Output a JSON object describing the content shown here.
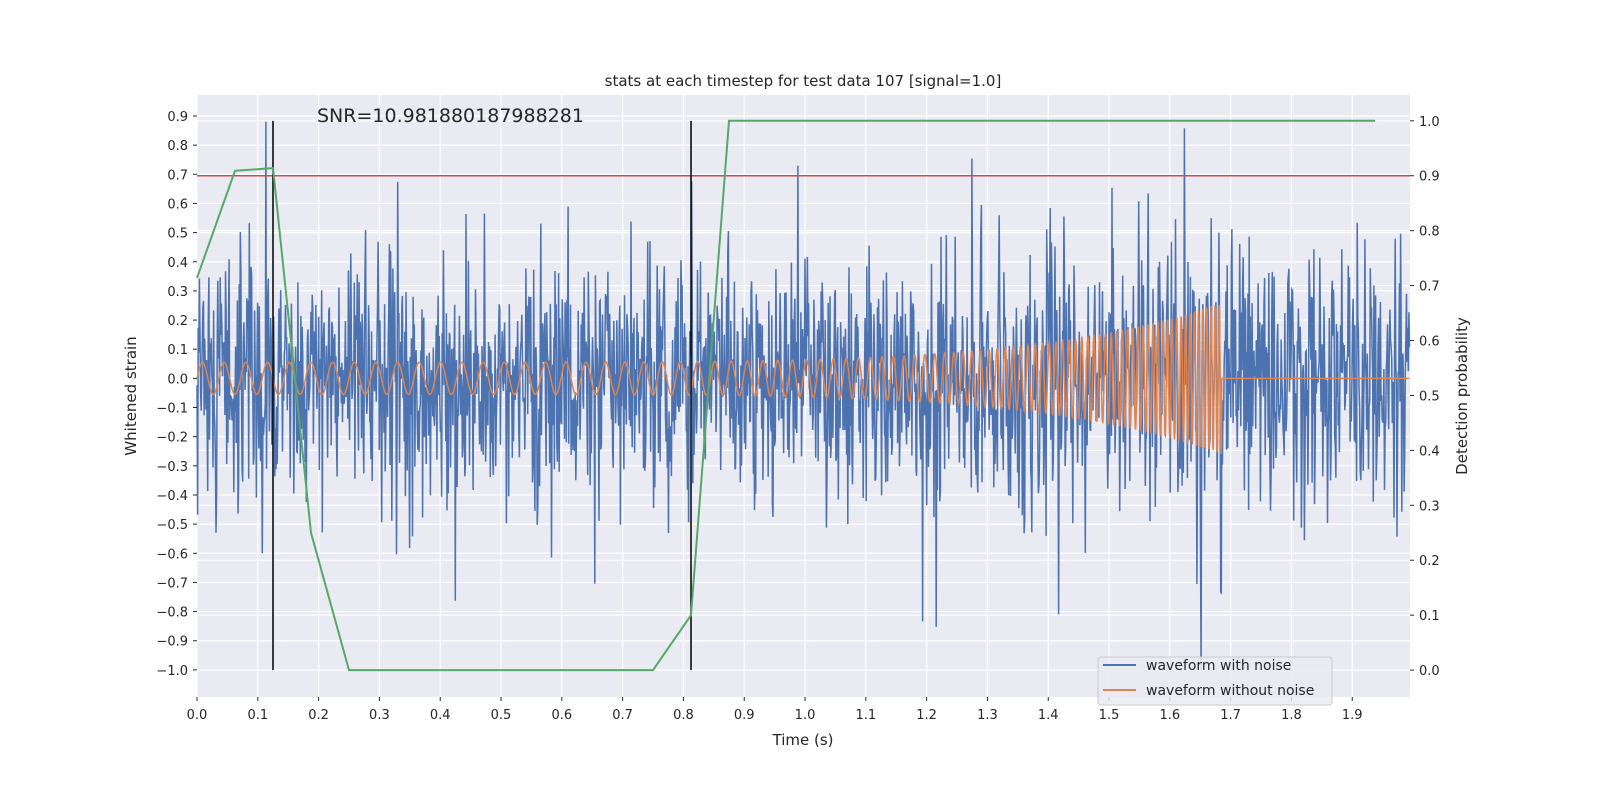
{
  "chart_data": {
    "type": "line",
    "title": "stats at each timestep for test data 107 [signal=1.0]",
    "annotation": "SNR=10.981880187988281",
    "xlabel": "Time (s)",
    "ylabel_left": "Whitened strain",
    "ylabel_right": "Detection probability",
    "xlim": [
      0.0,
      1.995
    ],
    "ylim_left": [
      -1.093,
      0.972
    ],
    "ylim_right": [
      -0.049,
      1.047
    ],
    "x_ticks": [
      "0.0",
      "0.1",
      "0.2",
      "0.3",
      "0.4",
      "0.5",
      "0.6",
      "0.7",
      "0.8",
      "0.9",
      "1.0",
      "1.1",
      "1.2",
      "1.3",
      "1.4",
      "1.5",
      "1.6",
      "1.7",
      "1.8",
      "1.9"
    ],
    "y_ticks_left": [
      "0.9",
      "0.8",
      "0.7",
      "0.6",
      "0.5",
      "0.4",
      "0.3",
      "0.2",
      "0.1",
      "0.0",
      "−0.1",
      "−0.2",
      "−0.3",
      "−0.4",
      "−0.5",
      "−0.6",
      "−0.7",
      "−0.8",
      "−0.9",
      "−1.0"
    ],
    "y_ticks_right": [
      "1.0",
      "0.9",
      "0.8",
      "0.7",
      "0.6",
      "0.5",
      "0.4",
      "0.3",
      "0.2",
      "0.1",
      "0.0"
    ],
    "grid": true,
    "legend": {
      "placement": "lower-right",
      "entries": [
        "waveform with noise",
        "waveform without noise"
      ]
    },
    "colors": {
      "noisy": "#4C72B0",
      "clean": "#DD8452",
      "prob": "#55A868",
      "threshold": "#C44E52",
      "marker": "#000000",
      "bg": "#EAEAF2"
    },
    "series": [
      {
        "name": "waveform with noise",
        "axis": "left",
        "samples": 2048,
        "noise_std": 0.2,
        "approx_range": [
          -1.0,
          0.88
        ]
      },
      {
        "name": "waveform without noise",
        "axis": "left",
        "chirp": {
          "start_amp": 0.055,
          "end_amp": 0.26,
          "start_freq_hz": 28,
          "end_freq_hz": 180,
          "merger_time": 1.685
        }
      },
      {
        "name": "detection probability",
        "axis": "right",
        "x": [
          0.0,
          0.0625,
          0.125,
          0.1875,
          0.25,
          0.3125,
          0.375,
          0.4375,
          0.5,
          0.5625,
          0.625,
          0.6875,
          0.75,
          0.8125,
          0.875,
          0.9375,
          1.0,
          1.0625,
          1.125,
          1.1875,
          1.25,
          1.3125,
          1.375,
          1.4375,
          1.5,
          1.5625,
          1.625,
          1.6875,
          1.75,
          1.8125,
          1.875,
          1.9375
        ],
        "y": [
          0.714,
          0.909,
          0.914,
          0.25,
          0.0,
          0.0,
          0.0,
          0.0,
          0.0,
          0.0,
          0.0,
          0.0,
          0.0,
          0.1,
          1.0,
          1.0,
          1.0,
          1.0,
          1.0,
          1.0,
          1.0,
          1.0,
          1.0,
          1.0,
          1.0,
          1.0,
          1.0,
          1.0,
          1.0,
          1.0,
          1.0,
          1.0
        ]
      }
    ],
    "threshold": {
      "axis": "right",
      "value": 0.9
    },
    "vertical_markers": {
      "axis": "right",
      "x": [
        0.125,
        0.8125
      ],
      "y_range": [
        0.0,
        1.0
      ]
    }
  }
}
